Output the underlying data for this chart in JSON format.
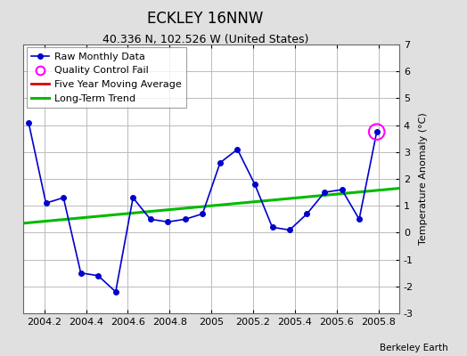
{
  "title": "ECKLEY 16NNW",
  "subtitle": "40.336 N, 102.526 W (United States)",
  "ylabel": "Temperature Anomaly (°C)",
  "watermark": "Berkeley Earth",
  "xlim": [
    2004.1,
    2005.9
  ],
  "ylim": [
    -3,
    7
  ],
  "yticks": [
    -3,
    -2,
    -1,
    0,
    1,
    2,
    3,
    4,
    5,
    6,
    7
  ],
  "xtick_vals": [
    2004.2,
    2004.4,
    2004.6,
    2004.8,
    2005.0,
    2005.2,
    2005.4,
    2005.6,
    2005.8
  ],
  "xtick_labels": [
    "2004.2",
    "2004.4",
    "2004.6",
    "2004.8",
    "2005",
    "2005.2",
    "2005.4",
    "2005.6",
    "2005.8"
  ],
  "raw_x": [
    2004.125,
    2004.208,
    2004.292,
    2004.375,
    2004.458,
    2004.542,
    2004.625,
    2004.708,
    2004.792,
    2004.875,
    2004.958,
    2005.042,
    2005.125,
    2005.208,
    2005.292,
    2005.375,
    2005.458,
    2005.542,
    2005.625,
    2005.708,
    2005.792
  ],
  "raw_y": [
    4.1,
    1.1,
    1.3,
    -1.5,
    -1.6,
    -2.2,
    1.3,
    0.5,
    0.4,
    0.5,
    0.7,
    2.6,
    3.1,
    1.8,
    0.2,
    0.1,
    0.7,
    1.5,
    1.6,
    0.5,
    3.75
  ],
  "qc_fail_x": [
    2005.792
  ],
  "qc_fail_y": [
    3.75
  ],
  "trend_x": [
    2004.1,
    2005.9
  ],
  "trend_y": [
    0.35,
    1.65
  ],
  "raw_color": "#0000cc",
  "raw_linewidth": 1.2,
  "raw_markersize": 4,
  "qc_color": "#ff00ff",
  "qc_markersize": 8,
  "trend_color": "#00bb00",
  "trend_linewidth": 2.2,
  "moving_avg_color": "#dd0000",
  "moving_avg_linewidth": 2,
  "bg_color": "#e0e0e0",
  "plot_bg_color": "#ffffff",
  "grid_color": "#bbbbbb",
  "title_fontsize": 12,
  "subtitle_fontsize": 9,
  "tick_fontsize": 8,
  "ylabel_fontsize": 8,
  "legend_fontsize": 8
}
